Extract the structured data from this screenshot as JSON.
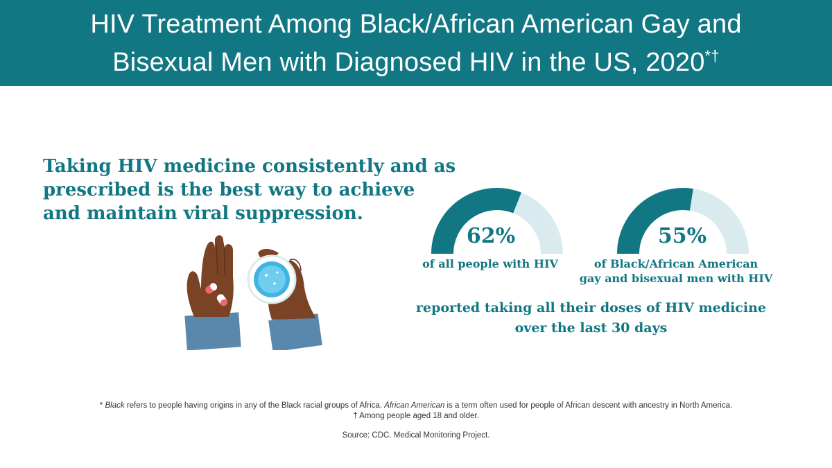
{
  "header": {
    "title_line1": "HIV Treatment Among Black/African American Gay and",
    "title_line2": "Bisexual Men with Diagnosed HIV in the US, 2020",
    "title_marks": "*†"
  },
  "lead": {
    "line1": "Taking HIV medicine consistently and as",
    "line2": "prescribed is the best way to achieve",
    "line3": "and maintain viral suppression."
  },
  "illustration": {
    "icons": [
      "hand-holding-pills-icon",
      "hand-holding-water-glass-icon"
    ]
  },
  "stats": [
    {
      "percent_label": "62%",
      "value": 62,
      "label_line1": "of all people with HIV",
      "label_line2": ""
    },
    {
      "percent_label": "55%",
      "value": 55,
      "label_line1": "of Black/African American",
      "label_line2": "gay and bisexual men with HIV"
    }
  ],
  "reported": {
    "line1": "reported taking all their doses of HIV medicine",
    "line2": "over the last 30 days"
  },
  "footnotes": {
    "star_mark": "*",
    "black_term": "Black",
    "black_def": " refers to people having origins in any of the Black racial groups of Africa. ",
    "aa_term": "African American",
    "aa_def": " is a term often used for people of African descent with ancestry in North America.",
    "dagger": "† Among people aged 18 and older.",
    "source": "Source: CDC. Medical Monitoring Project."
  },
  "colors": {
    "brand": "#117783",
    "gauge_track": "#d9ebee",
    "skin": "#7b4326",
    "sleeve": "#5a88ad",
    "pill_red": "#e8686b"
  }
}
